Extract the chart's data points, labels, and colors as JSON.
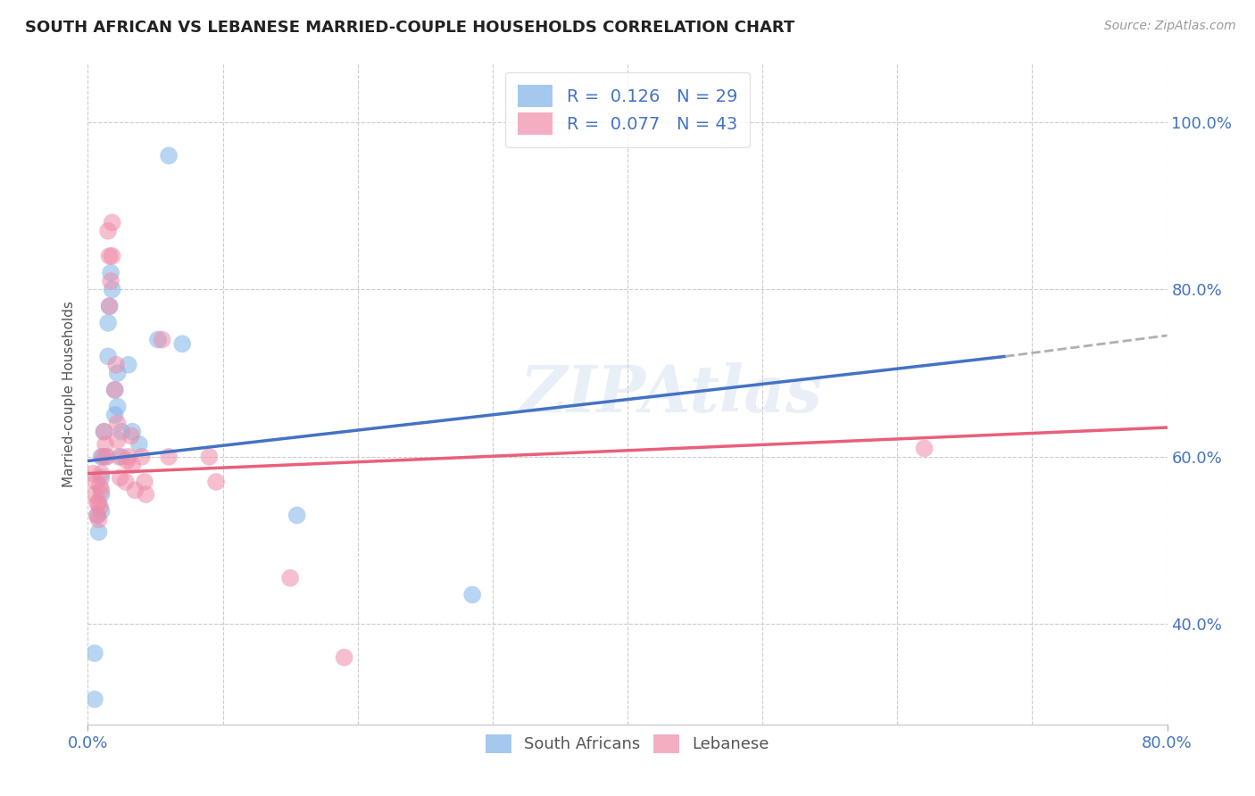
{
  "title": "SOUTH AFRICAN VS LEBANESE MARRIED-COUPLE HOUSEHOLDS CORRELATION CHART",
  "source": "Source: ZipAtlas.com",
  "ylabel": "Married-couple Households",
  "xlim": [
    0.0,
    0.8
  ],
  "ylim": [
    0.28,
    1.07
  ],
  "ytick_labels": [
    "40.0%",
    "60.0%",
    "80.0%",
    "100.0%"
  ],
  "ytick_positions": [
    0.4,
    0.6,
    0.8,
    1.0
  ],
  "background_color": "#ffffff",
  "watermark": "ZIPAtlas",
  "south_african_color": "#7fb3e8",
  "lebanese_color": "#f08ca8",
  "south_african_x": [
    0.005,
    0.005,
    0.007,
    0.008,
    0.01,
    0.01,
    0.01,
    0.01,
    0.012,
    0.013,
    0.015,
    0.015,
    0.016,
    0.017,
    0.018,
    0.02,
    0.02,
    0.022,
    0.022,
    0.025,
    0.025,
    0.03,
    0.033,
    0.038,
    0.052,
    0.06,
    0.07,
    0.155,
    0.285
  ],
  "south_african_y": [
    0.365,
    0.31,
    0.53,
    0.51,
    0.6,
    0.575,
    0.555,
    0.535,
    0.63,
    0.6,
    0.76,
    0.72,
    0.78,
    0.82,
    0.8,
    0.68,
    0.65,
    0.7,
    0.66,
    0.63,
    0.6,
    0.71,
    0.63,
    0.615,
    0.74,
    0.96,
    0.735,
    0.53,
    0.435
  ],
  "lebanese_x": [
    0.004,
    0.005,
    0.006,
    0.007,
    0.007,
    0.008,
    0.008,
    0.009,
    0.009,
    0.01,
    0.01,
    0.011,
    0.012,
    0.013,
    0.014,
    0.015,
    0.016,
    0.016,
    0.017,
    0.018,
    0.018,
    0.02,
    0.021,
    0.022,
    0.022,
    0.023,
    0.024,
    0.028,
    0.029,
    0.03,
    0.032,
    0.033,
    0.035,
    0.04,
    0.042,
    0.043,
    0.055,
    0.06,
    0.09,
    0.095,
    0.15,
    0.19,
    0.62
  ],
  "lebanese_y": [
    0.58,
    0.555,
    0.57,
    0.545,
    0.53,
    0.545,
    0.525,
    0.565,
    0.54,
    0.58,
    0.56,
    0.6,
    0.63,
    0.615,
    0.6,
    0.87,
    0.84,
    0.78,
    0.81,
    0.84,
    0.88,
    0.68,
    0.71,
    0.64,
    0.62,
    0.6,
    0.575,
    0.57,
    0.595,
    0.6,
    0.625,
    0.59,
    0.56,
    0.6,
    0.57,
    0.555,
    0.74,
    0.6,
    0.6,
    0.57,
    0.455,
    0.36,
    0.61
  ],
  "sa_R": 0.126,
  "sa_N": 29,
  "leb_R": 0.077,
  "leb_N": 43,
  "title_color": "#222222",
  "axis_color": "#4472c4",
  "grid_color": "#cccccc",
  "trend_sa_color": "#4472c4",
  "trend_leb_color": "#e8607a",
  "trend_sa_dash_color": "#b0b0b0",
  "grid_xticks": [
    0.0,
    0.1,
    0.2,
    0.3,
    0.4,
    0.5,
    0.6,
    0.7,
    0.8
  ]
}
